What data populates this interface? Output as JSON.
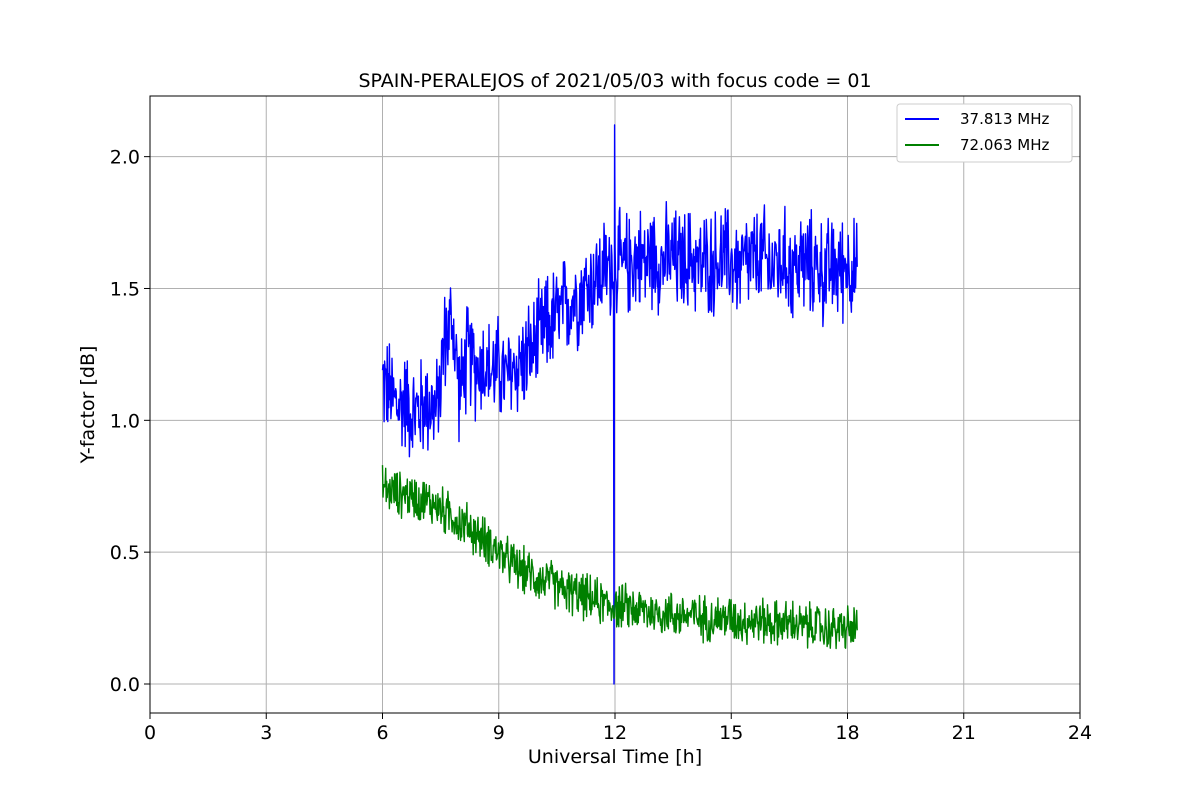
{
  "chart_data": {
    "type": "line",
    "title": "SPAIN-PERALEJOS of 2021/05/03 with focus code = 01",
    "xlabel": "Universal Time [h]",
    "ylabel": "Y-factor [dB]",
    "xlim": [
      0,
      24
    ],
    "ylim": [
      -0.11,
      2.23
    ],
    "xticks": [
      0,
      3,
      6,
      9,
      12,
      15,
      18,
      21,
      24
    ],
    "xtick_labels": [
      "0",
      "3",
      "6",
      "9",
      "12",
      "15",
      "18",
      "21",
      "24"
    ],
    "yticks": [
      0.0,
      0.5,
      1.0,
      1.5,
      2.0
    ],
    "ytick_labels": [
      "0.0",
      "0.5",
      "1.0",
      "1.5",
      "2.0"
    ],
    "grid": true,
    "legend_position": "top-right",
    "series": [
      {
        "name": "37.813 MHz",
        "color": "#0000ff",
        "x": [
          6.0,
          6.2,
          6.4,
          6.6,
          6.8,
          7.0,
          7.2,
          7.4,
          7.6,
          7.8,
          8.0,
          8.2,
          8.4,
          8.6,
          8.8,
          9.0,
          9.2,
          9.4,
          9.6,
          9.8,
          10.0,
          10.2,
          10.4,
          10.6,
          10.8,
          11.0,
          11.2,
          11.4,
          11.6,
          11.8,
          12.0,
          12.2,
          12.4,
          12.6,
          12.8,
          13.0,
          13.2,
          13.4,
          13.6,
          13.8,
          14.0,
          14.2,
          14.4,
          14.6,
          14.8,
          15.0,
          15.2,
          15.4,
          15.6,
          15.8,
          16.0,
          16.2,
          16.4,
          16.6,
          16.8,
          17.0,
          17.2,
          17.4,
          17.6,
          17.8,
          18.0,
          18.25
        ],
        "y": [
          1.15,
          1.1,
          1.05,
          1.08,
          1.02,
          1.05,
          1.07,
          1.03,
          1.3,
          1.38,
          1.1,
          1.25,
          1.2,
          1.22,
          1.18,
          1.2,
          1.15,
          1.2,
          1.22,
          1.25,
          1.3,
          1.35,
          1.38,
          1.4,
          1.45,
          1.47,
          1.5,
          1.52,
          1.55,
          1.58,
          1.6,
          1.58,
          1.6,
          1.62,
          1.6,
          1.63,
          1.6,
          1.62,
          1.6,
          1.6,
          1.62,
          1.58,
          1.6,
          1.6,
          1.62,
          1.6,
          1.58,
          1.6,
          1.6,
          1.62,
          1.58,
          1.6,
          1.6,
          1.57,
          1.6,
          1.58,
          1.6,
          1.55,
          1.58,
          1.57,
          1.6,
          1.55
        ]
      },
      {
        "name": "72.063 MHz",
        "color": "#008000",
        "x": [
          6.0,
          6.2,
          6.4,
          6.6,
          6.8,
          7.0,
          7.2,
          7.4,
          7.6,
          7.8,
          8.0,
          8.2,
          8.4,
          8.6,
          8.8,
          9.0,
          9.2,
          9.4,
          9.6,
          9.8,
          10.0,
          10.2,
          10.4,
          10.6,
          10.8,
          11.0,
          11.2,
          11.4,
          11.6,
          11.8,
          12.0,
          12.2,
          12.4,
          12.6,
          12.8,
          13.0,
          13.2,
          13.4,
          13.6,
          13.8,
          14.0,
          14.2,
          14.4,
          14.6,
          14.8,
          15.0,
          15.2,
          15.4,
          15.6,
          15.8,
          16.0,
          16.2,
          16.4,
          16.6,
          16.8,
          17.0,
          17.2,
          17.4,
          17.6,
          17.8,
          18.0,
          18.25
        ],
        "y": [
          0.75,
          0.73,
          0.72,
          0.72,
          0.71,
          0.7,
          0.69,
          0.68,
          0.65,
          0.64,
          0.61,
          0.6,
          0.57,
          0.55,
          0.53,
          0.5,
          0.47,
          0.45,
          0.43,
          0.42,
          0.4,
          0.39,
          0.38,
          0.36,
          0.35,
          0.34,
          0.33,
          0.32,
          0.31,
          0.3,
          0.3,
          0.29,
          0.29,
          0.28,
          0.28,
          0.27,
          0.27,
          0.27,
          0.26,
          0.26,
          0.26,
          0.25,
          0.25,
          0.25,
          0.25,
          0.25,
          0.24,
          0.24,
          0.24,
          0.24,
          0.23,
          0.23,
          0.23,
          0.23,
          0.22,
          0.22,
          0.22,
          0.21,
          0.21,
          0.21,
          0.21,
          0.21
        ]
      }
    ]
  }
}
